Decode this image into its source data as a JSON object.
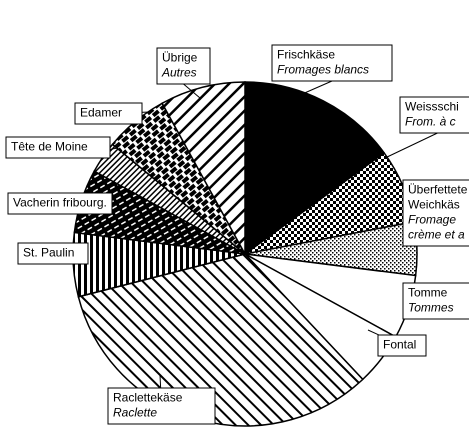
{
  "chart_data": {
    "type": "pie",
    "slices": [
      {
        "label": [
          "Frischkäse"
        ],
        "label_fr": [
          "Fromages blancs"
        ],
        "value": 15,
        "pattern": "solid"
      },
      {
        "label": [
          "Weissschi"
        ],
        "label_fr": [
          "From. à c"
        ],
        "value": 7,
        "pattern": "checker"
      },
      {
        "label": [
          "Überfettete",
          "Weichkäs"
        ],
        "label_fr": [
          "Fromage",
          "crème et a"
        ],
        "value": 5,
        "pattern": "dots"
      },
      {
        "label": [
          "Tomme"
        ],
        "label_fr": [
          "Tommes"
        ],
        "value": 6,
        "pattern": "white"
      },
      {
        "label": [
          "Fontal"
        ],
        "value": 5,
        "pattern": "white"
      },
      {
        "label": [
          "Raclettekäse"
        ],
        "label_fr": [
          "Raclette"
        ],
        "value": 33,
        "pattern": "diag"
      },
      {
        "label": [
          "St. Paulin"
        ],
        "value": 6,
        "pattern": "vert"
      },
      {
        "label": [
          "Vacherin fribourg."
        ],
        "value": 6,
        "pattern": "dash"
      },
      {
        "label": [
          "Tête de Moine"
        ],
        "value": 3,
        "pattern": "diag-dense"
      },
      {
        "label": [
          "Edamer"
        ],
        "value": 6,
        "pattern": "blocks"
      },
      {
        "label": [
          "Übrige"
        ],
        "label_fr": [
          "Autres"
        ],
        "value": 8,
        "pattern": "diag-wide"
      }
    ]
  }
}
